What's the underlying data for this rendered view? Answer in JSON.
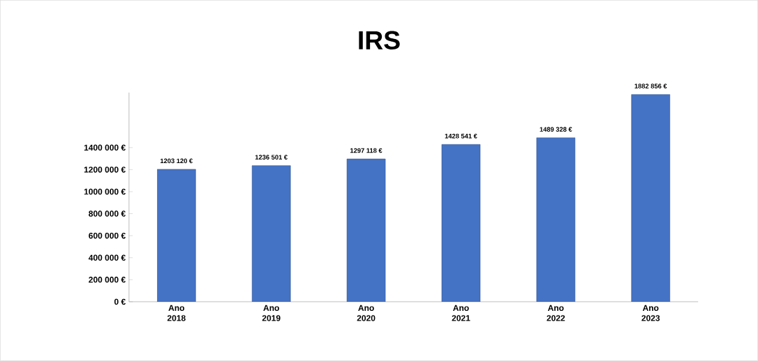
{
  "chart_data": {
    "type": "bar",
    "title": "IRS",
    "categories": [
      "Ano 2018",
      "Ano 2019",
      "Ano 2020",
      "Ano 2021",
      "Ano 2022",
      "Ano 2023"
    ],
    "values": [
      1203120,
      1236501,
      1297118,
      1428541,
      1489328,
      1882856
    ],
    "value_labels": [
      "1203 120 €",
      "1236 501 €",
      "1297 118 €",
      "1428 541 €",
      "1489 328 €",
      "1882 856 €"
    ],
    "color": "#4472c4",
    "ylim": [
      0,
      1900000
    ],
    "yticks": [
      {
        "value": 0,
        "label": "0 €"
      },
      {
        "value": 200000,
        "label": "200 000 €"
      },
      {
        "value": 400000,
        "label": "400 000 €"
      },
      {
        "value": 600000,
        "label": "600 000 €"
      },
      {
        "value": 800000,
        "label": "800 000 €"
      },
      {
        "value": 1000000,
        "label": "1000 000 €"
      },
      {
        "value": 1200000,
        "label": "1200 000 €"
      },
      {
        "value": 1400000,
        "label": "1400 000 €"
      }
    ],
    "grid": false
  }
}
